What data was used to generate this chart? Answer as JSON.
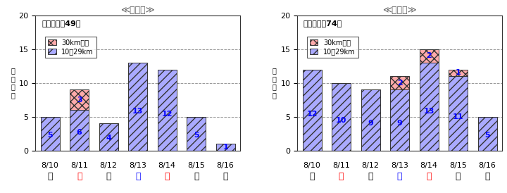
{
  "left": {
    "title": "≪下り線≫",
    "subtitle": "下り合計：49回",
    "dates": [
      "8/10",
      "8/11",
      "8/12",
      "8/13",
      "8/14",
      "8/15",
      "8/16"
    ],
    "days": [
      "水",
      "木",
      "金",
      "土",
      "日",
      "月",
      "火"
    ],
    "day_colors": [
      "black",
      "red",
      "black",
      "blue",
      "red",
      "black",
      "black"
    ],
    "values_10_29": [
      5,
      6,
      4,
      13,
      12,
      5,
      1
    ],
    "values_30plus": [
      0,
      3,
      0,
      0,
      0,
      0,
      0
    ],
    "ylim": [
      0,
      20
    ],
    "yticks": [
      0,
      5,
      10,
      15,
      20
    ],
    "ylabel": "渋\n澩\n回\n数"
  },
  "right": {
    "title": "≪上り線≫",
    "subtitle": "上り合計：74回",
    "dates": [
      "8/10",
      "8/11",
      "8/12",
      "8/13",
      "8/14",
      "8/15",
      "8/16"
    ],
    "days": [
      "水",
      "木",
      "金",
      "土",
      "日",
      "月",
      "火"
    ],
    "day_colors": [
      "black",
      "red",
      "black",
      "blue",
      "red",
      "black",
      "black"
    ],
    "values_10_29": [
      12,
      10,
      9,
      9,
      13,
      11,
      5
    ],
    "values_30plus": [
      0,
      0,
      0,
      2,
      2,
      1,
      0
    ],
    "ylim": [
      0,
      20
    ],
    "yticks": [
      0,
      5,
      10,
      15,
      20
    ],
    "ylabel": "渋\n澩\n回\n数"
  },
  "bar_color_10_29": "#aaaaff",
  "bar_color_30plus": "#ffaaaa",
  "bar_edgecolor": "#333333",
  "hatch_10_29": "///",
  "hatch_30plus": "xxx",
  "bg_color": "#ffffff",
  "title_color": "#666666",
  "grid_color": "#999999",
  "label_fontsize": 8,
  "title_fontsize": 9,
  "bar_label_fontsize": 8,
  "bar_label_color": "blue",
  "legend_label_30": "30km以上",
  "legend_label_10": "10～29km"
}
